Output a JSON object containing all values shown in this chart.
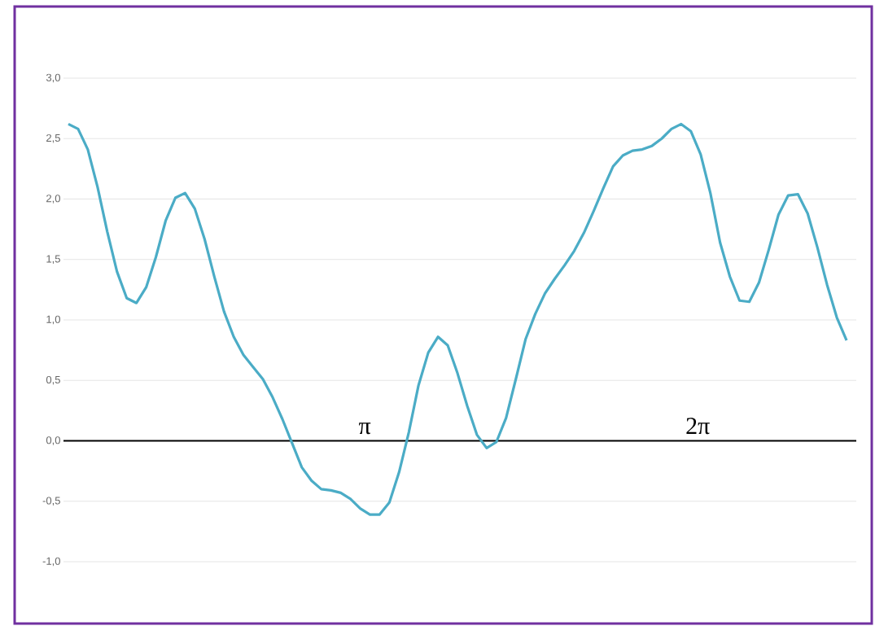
{
  "chart_data": {
    "type": "line",
    "categories": [
      null,
      null,
      null,
      null,
      null,
      null,
      null,
      null,
      null,
      null,
      null,
      null,
      null,
      null,
      null,
      null,
      null,
      null,
      null,
      null,
      null,
      null,
      null,
      null,
      null,
      null,
      null,
      null,
      null,
      null,
      null,
      null,
      null,
      null,
      null,
      null,
      null,
      null,
      null,
      null,
      null,
      null,
      null,
      null,
      null,
      null,
      null,
      null,
      null,
      null,
      null,
      null,
      null,
      null,
      null,
      null,
      null,
      null,
      null,
      null,
      null,
      null,
      null,
      null,
      null,
      null,
      null,
      null,
      null,
      null,
      null,
      null,
      null,
      null,
      null,
      null,
      null,
      null,
      null,
      null,
      null
    ],
    "series": [
      {
        "color": "#4bacc6",
        "values": [
          2.62,
          2.58,
          2.41,
          2.1,
          1.73,
          1.4,
          1.18,
          1.14,
          1.27,
          1.52,
          1.82,
          2.01,
          2.05,
          1.92,
          1.67,
          1.36,
          1.07,
          0.86,
          0.71,
          0.61,
          0.51,
          0.36,
          0.18,
          -0.02,
          -0.22,
          -0.33,
          -0.4,
          -0.41,
          -0.43,
          -0.48,
          -0.56,
          -0.61,
          -0.61,
          -0.51,
          -0.26,
          0.07,
          0.46,
          0.73,
          0.86,
          0.79,
          0.56,
          0.29,
          0.05,
          -0.06,
          -0.01,
          0.19,
          0.51,
          0.84,
          1.05,
          1.22,
          1.34,
          1.45,
          1.57,
          1.72,
          1.9,
          2.09,
          2.27,
          2.36,
          2.4,
          2.41,
          2.44,
          2.5,
          2.58,
          2.62,
          2.56,
          2.37,
          2.05,
          1.64,
          1.36,
          1.16,
          1.15,
          1.31,
          1.58,
          1.87,
          2.03,
          2.04,
          1.88,
          1.6,
          1.29,
          1.02,
          0.83
        ]
      }
    ],
    "ylim": [
      -1.0,
      3.0
    ],
    "yticks": [
      {
        "value": -1.0,
        "label": "-1,0"
      },
      {
        "value": -0.5,
        "label": "-0,5"
      },
      {
        "value": 0.0,
        "label": "0,0"
      },
      {
        "value": 0.5,
        "label": "0,5"
      },
      {
        "value": 1.0,
        "label": "1,0"
      },
      {
        "value": 1.5,
        "label": "1,5"
      },
      {
        "value": 2.0,
        "label": "2,0"
      },
      {
        "value": 2.5,
        "label": "2,5"
      },
      {
        "value": 3.0,
        "label": "3,0"
      }
    ],
    "grid": "y",
    "tick_labels": "y",
    "annotations": [
      "π",
      "2π"
    ]
  }
}
